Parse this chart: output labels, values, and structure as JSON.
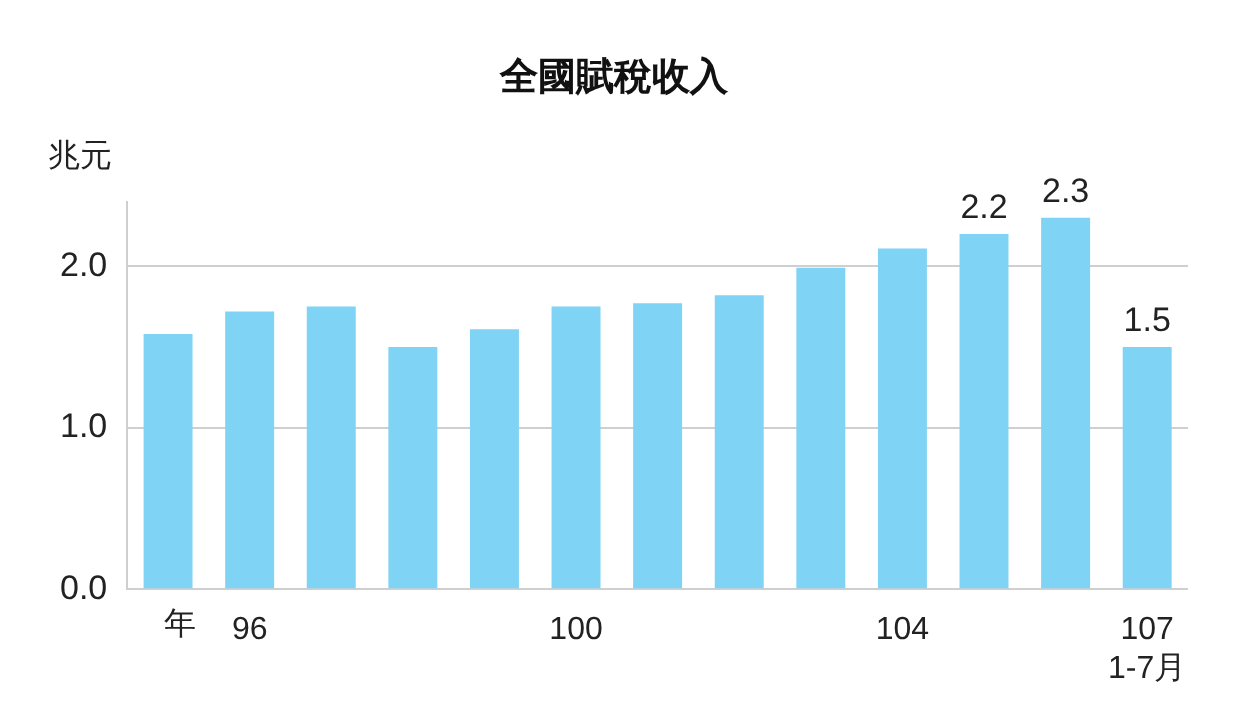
{
  "chart_data": {
    "type": "bar",
    "title": "全國賦稅收入",
    "xlabel": "年",
    "ylabel": "兆元",
    "categories": [
      null,
      "96",
      null,
      null,
      null,
      "100",
      null,
      null,
      null,
      "104",
      null,
      null,
      "107\n1-7月"
    ],
    "values": [
      1.58,
      1.72,
      1.75,
      1.5,
      1.61,
      1.75,
      1.77,
      1.82,
      1.99,
      2.11,
      2.2,
      2.3,
      1.5
    ],
    "value_labels": [
      null,
      null,
      null,
      null,
      null,
      null,
      null,
      null,
      null,
      null,
      "2.2",
      "2.3",
      "1.5"
    ],
    "color": "#7fd3f5",
    "ylim": [
      0,
      2.4
    ],
    "yticks": [
      {
        "value": 0,
        "label": "0.0"
      },
      {
        "value": 1,
        "label": "1.0"
      },
      {
        "value": 2,
        "label": "2.0"
      }
    ],
    "grid": "y"
  }
}
